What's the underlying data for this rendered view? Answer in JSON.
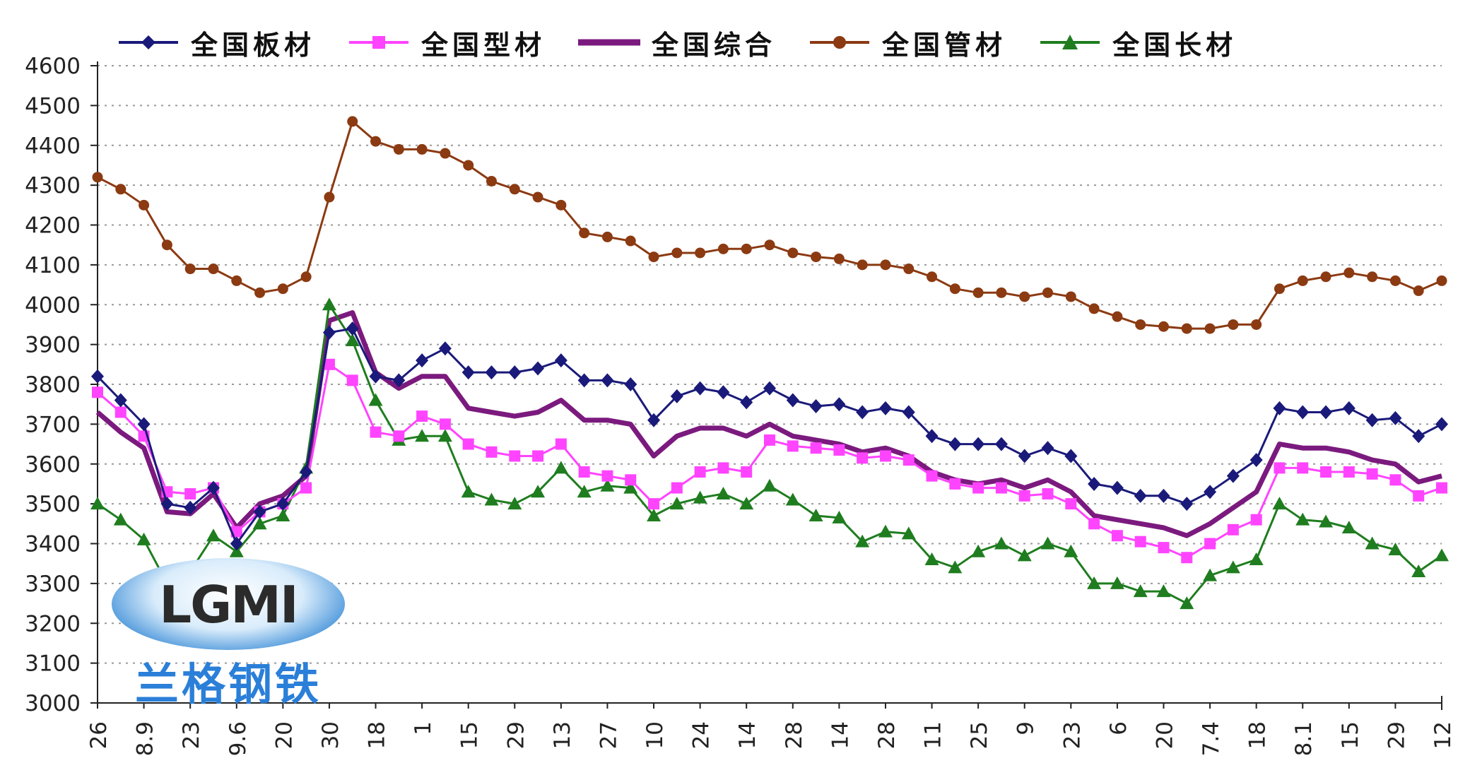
{
  "chart_data": {
    "type": "line",
    "title": "",
    "xlabel": "",
    "ylabel": "",
    "ylim": [
      3000,
      4600
    ],
    "yticks": [
      3000,
      3100,
      3200,
      3300,
      3400,
      3500,
      3600,
      3700,
      3800,
      3900,
      4000,
      4100,
      4200,
      4300,
      4400,
      4500,
      4600
    ],
    "x_tick_labels": [
      "26",
      "8.9",
      "23",
      "9.6",
      "20",
      "30",
      "18",
      "1",
      "15",
      "29",
      "13",
      "27",
      "10",
      "24",
      "14",
      "28",
      "14",
      "28",
      "11",
      "25",
      "9",
      "23",
      "6",
      "20",
      "7.4",
      "18",
      "8.1",
      "15",
      "29",
      "12"
    ],
    "grid": "horizontal-dotted",
    "legend_position": "top",
    "series": [
      {
        "name": "全国板材",
        "color": "#1a1a7a",
        "marker": "diamond",
        "values": [
          3820,
          3760,
          3700,
          3500,
          3490,
          3540,
          3400,
          3480,
          3500,
          3580,
          3930,
          3940,
          3820,
          3810,
          3860,
          3890,
          3830,
          3830,
          3830,
          3840,
          3860,
          3810,
          3810,
          3800,
          3710,
          3770,
          3790,
          3780,
          3755,
          3790,
          3760,
          3745,
          3750,
          3730,
          3740,
          3730,
          3670,
          3650,
          3650,
          3650,
          3620,
          3640,
          3620,
          3550,
          3540,
          3520,
          3520,
          3500,
          3530,
          3570,
          3610,
          3740,
          3730,
          3730,
          3740,
          3710,
          3715,
          3670,
          3700
        ]
      },
      {
        "name": "全国型材",
        "color": "#ff44ff",
        "marker": "square",
        "values": [
          3780,
          3730,
          3670,
          3530,
          3525,
          3540,
          3430,
          3480,
          3500,
          3540,
          3850,
          3810,
          3680,
          3670,
          3720,
          3700,
          3650,
          3630,
          3620,
          3620,
          3650,
          3580,
          3570,
          3560,
          3500,
          3540,
          3580,
          3590,
          3580,
          3660,
          3645,
          3640,
          3635,
          3615,
          3620,
          3610,
          3570,
          3550,
          3540,
          3540,
          3520,
          3525,
          3500,
          3450,
          3420,
          3405,
          3390,
          3365,
          3400,
          3435,
          3460,
          3590,
          3590,
          3580,
          3580,
          3575,
          3560,
          3520,
          3540
        ]
      },
      {
        "name": "全国综合",
        "color": "#7b1a7e",
        "marker": "none",
        "values": [
          3730,
          3680,
          3640,
          3480,
          3475,
          3525,
          3440,
          3500,
          3520,
          3570,
          3960,
          3980,
          3830,
          3790,
          3820,
          3820,
          3740,
          3730,
          3720,
          3730,
          3760,
          3710,
          3710,
          3700,
          3620,
          3670,
          3690,
          3690,
          3670,
          3700,
          3670,
          3660,
          3650,
          3630,
          3640,
          3620,
          3580,
          3560,
          3550,
          3560,
          3540,
          3560,
          3530,
          3470,
          3460,
          3450,
          3440,
          3420,
          3450,
          3490,
          3530,
          3650,
          3640,
          3640,
          3630,
          3610,
          3600,
          3555,
          3570
        ]
      },
      {
        "name": "全国管材",
        "color": "#8b3a12",
        "marker": "circle",
        "values": [
          4320,
          4290,
          4250,
          4150,
          4090,
          4090,
          4060,
          4030,
          4040,
          4070,
          4270,
          4460,
          4410,
          4390,
          4390,
          4380,
          4350,
          4310,
          4290,
          4270,
          4250,
          4180,
          4170,
          4160,
          4120,
          4130,
          4130,
          4140,
          4140,
          4150,
          4130,
          4120,
          4115,
          4100,
          4100,
          4090,
          4070,
          4040,
          4030,
          4030,
          4020,
          4030,
          4020,
          3990,
          3970,
          3950,
          3945,
          3940,
          3940,
          3950,
          3950,
          4040,
          4060,
          4070,
          4080,
          4070,
          4060,
          4035,
          4060
        ]
      },
      {
        "name": "全国长材",
        "color": "#1f7d1f",
        "marker": "triangle",
        "values": [
          3500,
          3460,
          3410,
          3300,
          3330,
          3420,
          3380,
          3450,
          3470,
          3590,
          4000,
          3910,
          3760,
          3660,
          3670,
          3670,
          3530,
          3510,
          3500,
          3530,
          3590,
          3530,
          3545,
          3540,
          3470,
          3500,
          3515,
          3525,
          3500,
          3545,
          3510,
          3470,
          3465,
          3405,
          3430,
          3425,
          3360,
          3340,
          3380,
          3400,
          3370,
          3400,
          3380,
          3300,
          3300,
          3280,
          3280,
          3250,
          3320,
          3340,
          3360,
          3500,
          3460,
          3455,
          3440,
          3400,
          3385,
          3330,
          3370
        ]
      }
    ]
  },
  "logo": {
    "text": "LGMI",
    "text_chinese": "兰格钢铁"
  }
}
